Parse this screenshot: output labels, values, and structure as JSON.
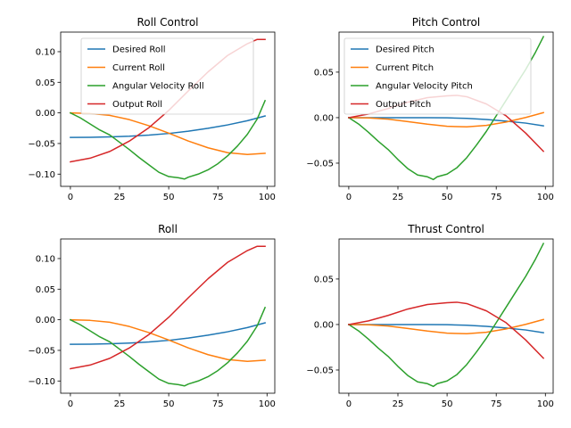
{
  "colors": {
    "blue": "#1f77b4",
    "orange": "#ff7f0e",
    "green": "#2ca02c",
    "red": "#d62728"
  },
  "chart_data": [
    {
      "type": "line",
      "title": "Roll Control",
      "xlabel": "",
      "ylabel": "",
      "xlim": [
        -4.95,
        103.95
      ],
      "ylim": [
        -0.12,
        0.132
      ],
      "xticks": [
        0,
        25,
        50,
        75,
        100
      ],
      "xtick_labels": [
        "0",
        "25",
        "50",
        "75",
        "100"
      ],
      "yticks": [
        -0.1,
        -0.05,
        0.0,
        0.05,
        0.1
      ],
      "ytick_labels": [
        "−0.10",
        "−0.05",
        "0.00",
        "0.05",
        "0.10"
      ],
      "legend": "upper center",
      "series": [
        {
          "name": "Desired Roll",
          "color": "blue",
          "x": [
            0,
            10,
            20,
            30,
            40,
            50,
            60,
            70,
            80,
            90,
            99
          ],
          "y": [
            -0.04,
            -0.0398,
            -0.0392,
            -0.0381,
            -0.0363,
            -0.0336,
            -0.0299,
            -0.0252,
            -0.0196,
            -0.0128,
            -0.005
          ]
        },
        {
          "name": "Current Roll",
          "color": "orange",
          "x": [
            0,
            10,
            20,
            30,
            40,
            50,
            60,
            70,
            80,
            90,
            99
          ],
          "y": [
            0.0,
            -0.001,
            -0.004,
            -0.011,
            -0.021,
            -0.033,
            -0.046,
            -0.057,
            -0.065,
            -0.068,
            -0.066
          ]
        },
        {
          "name": "Angular Velocity Roll",
          "color": "green",
          "x": [
            0,
            5,
            10,
            15,
            20,
            25,
            30,
            35,
            40,
            45,
            50,
            55,
            58,
            60,
            65,
            70,
            75,
            80,
            85,
            90,
            95,
            99
          ],
          "y": [
            0.0,
            -0.008,
            -0.018,
            -0.028,
            -0.036,
            -0.048,
            -0.06,
            -0.073,
            -0.085,
            -0.097,
            -0.104,
            -0.106,
            -0.108,
            -0.105,
            -0.1,
            -0.093,
            -0.083,
            -0.07,
            -0.054,
            -0.035,
            -0.01,
            0.02
          ]
        },
        {
          "name": "Output Roll",
          "color": "red",
          "x": [
            0,
            10,
            20,
            30,
            40,
            50,
            60,
            70,
            80,
            90,
            95,
            99
          ],
          "y": [
            -0.08,
            -0.074,
            -0.063,
            -0.046,
            -0.024,
            0.004,
            0.036,
            0.067,
            0.094,
            0.113,
            0.12,
            0.12
          ]
        }
      ]
    },
    {
      "type": "line",
      "title": "Pitch Control",
      "xlabel": "",
      "ylabel": "",
      "xlim": [
        -4.95,
        103.95
      ],
      "ylim": [
        -0.0755,
        0.094
      ],
      "xticks": [
        0,
        25,
        50,
        75,
        100
      ],
      "xtick_labels": [
        "0",
        "25",
        "50",
        "75",
        "100"
      ],
      "yticks": [
        -0.05,
        0.0,
        0.05
      ],
      "ytick_labels": [
        "−0.05",
        "0.00",
        "0.05"
      ],
      "legend": "upper left",
      "series": [
        {
          "name": "Desired Pitch",
          "color": "blue",
          "x": [
            0,
            10,
            20,
            30,
            40,
            50,
            60,
            70,
            80,
            90,
            99
          ],
          "y": [
            0.0,
            0.0,
            0.0,
            0.0,
            0.0,
            -0.0002,
            -0.0008,
            -0.002,
            -0.0038,
            -0.006,
            -0.009
          ]
        },
        {
          "name": "Current Pitch",
          "color": "orange",
          "x": [
            0,
            10,
            20,
            30,
            40,
            50,
            60,
            70,
            80,
            90,
            99
          ],
          "y": [
            0.0,
            -0.0003,
            -0.0017,
            -0.0043,
            -0.0072,
            -0.0095,
            -0.0101,
            -0.0085,
            -0.0048,
            0.0002,
            0.0055
          ]
        },
        {
          "name": "Angular Velocity Pitch",
          "color": "green",
          "x": [
            0,
            5,
            10,
            15,
            20,
            25,
            30,
            35,
            40,
            43,
            45,
            50,
            55,
            60,
            65,
            70,
            75,
            80,
            85,
            90,
            95,
            99
          ],
          "y": [
            0.0,
            -0.007,
            -0.016,
            -0.026,
            -0.035,
            -0.046,
            -0.056,
            -0.063,
            -0.065,
            -0.068,
            -0.065,
            -0.062,
            -0.055,
            -0.044,
            -0.03,
            -0.015,
            0.002,
            0.019,
            0.036,
            0.053,
            0.072,
            0.089
          ]
        },
        {
          "name": "Output Pitch",
          "color": "red",
          "x": [
            0,
            10,
            20,
            30,
            40,
            50,
            55,
            60,
            70,
            80,
            90,
            99
          ],
          "y": [
            0.0,
            0.004,
            0.01,
            0.017,
            0.022,
            0.024,
            0.0245,
            0.023,
            0.015,
            0.002,
            -0.017,
            -0.037
          ]
        }
      ]
    },
    {
      "type": "line",
      "title": "Roll",
      "xlabel": "",
      "ylabel": "",
      "xlim": [
        -4.95,
        103.95
      ],
      "ylim": [
        -0.12,
        0.132
      ],
      "xticks": [
        0,
        25,
        50,
        75,
        100
      ],
      "xtick_labels": [
        "0",
        "25",
        "50",
        "75",
        "100"
      ],
      "yticks": [
        -0.1,
        -0.05,
        0.0,
        0.05,
        0.1
      ],
      "ytick_labels": [
        "−0.10",
        "−0.05",
        "0.00",
        "0.05",
        "0.10"
      ],
      "legend": "none",
      "series": [
        {
          "color": "blue",
          "x": [
            0,
            10,
            20,
            30,
            40,
            50,
            60,
            70,
            80,
            90,
            99
          ],
          "y": [
            -0.04,
            -0.0398,
            -0.0392,
            -0.0381,
            -0.0363,
            -0.0336,
            -0.0299,
            -0.0252,
            -0.0196,
            -0.0128,
            -0.005
          ]
        },
        {
          "color": "orange",
          "x": [
            0,
            10,
            20,
            30,
            40,
            50,
            60,
            70,
            80,
            90,
            99
          ],
          "y": [
            0.0,
            -0.001,
            -0.004,
            -0.011,
            -0.021,
            -0.033,
            -0.046,
            -0.057,
            -0.065,
            -0.068,
            -0.066
          ]
        },
        {
          "color": "green",
          "x": [
            0,
            5,
            10,
            15,
            20,
            25,
            30,
            35,
            40,
            45,
            50,
            55,
            58,
            60,
            65,
            70,
            75,
            80,
            85,
            90,
            95,
            99
          ],
          "y": [
            0.0,
            -0.008,
            -0.018,
            -0.028,
            -0.036,
            -0.048,
            -0.06,
            -0.073,
            -0.085,
            -0.097,
            -0.104,
            -0.106,
            -0.108,
            -0.105,
            -0.1,
            -0.093,
            -0.083,
            -0.07,
            -0.054,
            -0.035,
            -0.01,
            0.02
          ]
        },
        {
          "color": "red",
          "x": [
            0,
            10,
            20,
            30,
            40,
            50,
            60,
            70,
            80,
            90,
            95,
            99
          ],
          "y": [
            -0.08,
            -0.074,
            -0.063,
            -0.046,
            -0.024,
            0.004,
            0.036,
            0.067,
            0.094,
            0.113,
            0.12,
            0.12
          ]
        }
      ]
    },
    {
      "type": "line",
      "title": "Thrust Control",
      "xlabel": "",
      "ylabel": "",
      "xlim": [
        -4.95,
        103.95
      ],
      "ylim": [
        -0.0755,
        0.094
      ],
      "xticks": [
        0,
        25,
        50,
        75,
        100
      ],
      "xtick_labels": [
        "0",
        "25",
        "50",
        "75",
        "100"
      ],
      "yticks": [
        -0.05,
        0.0,
        0.05
      ],
      "ytick_labels": [
        "−0.05",
        "0.00",
        "0.05"
      ],
      "legend": "none",
      "series": [
        {
          "color": "blue",
          "x": [
            0,
            10,
            20,
            30,
            40,
            50,
            60,
            70,
            80,
            90,
            99
          ],
          "y": [
            0.0,
            0.0,
            0.0,
            0.0,
            0.0,
            -0.0002,
            -0.0008,
            -0.002,
            -0.0038,
            -0.006,
            -0.009
          ]
        },
        {
          "color": "orange",
          "x": [
            0,
            10,
            20,
            30,
            40,
            50,
            60,
            70,
            80,
            90,
            99
          ],
          "y": [
            0.0,
            -0.0003,
            -0.0017,
            -0.0043,
            -0.0072,
            -0.0095,
            -0.0101,
            -0.0085,
            -0.0048,
            0.0002,
            0.0055
          ]
        },
        {
          "color": "green",
          "x": [
            0,
            5,
            10,
            15,
            20,
            25,
            30,
            35,
            40,
            43,
            45,
            50,
            55,
            60,
            65,
            70,
            75,
            80,
            85,
            90,
            95,
            99
          ],
          "y": [
            0.0,
            -0.007,
            -0.016,
            -0.026,
            -0.035,
            -0.046,
            -0.056,
            -0.063,
            -0.065,
            -0.068,
            -0.065,
            -0.062,
            -0.055,
            -0.044,
            -0.03,
            -0.015,
            0.002,
            0.019,
            0.036,
            0.053,
            0.072,
            0.089
          ]
        },
        {
          "color": "red",
          "x": [
            0,
            10,
            20,
            30,
            40,
            50,
            55,
            60,
            70,
            80,
            90,
            99
          ],
          "y": [
            0.0,
            0.004,
            0.01,
            0.017,
            0.022,
            0.024,
            0.0245,
            0.023,
            0.015,
            0.002,
            -0.017,
            -0.037
          ]
        }
      ]
    }
  ]
}
